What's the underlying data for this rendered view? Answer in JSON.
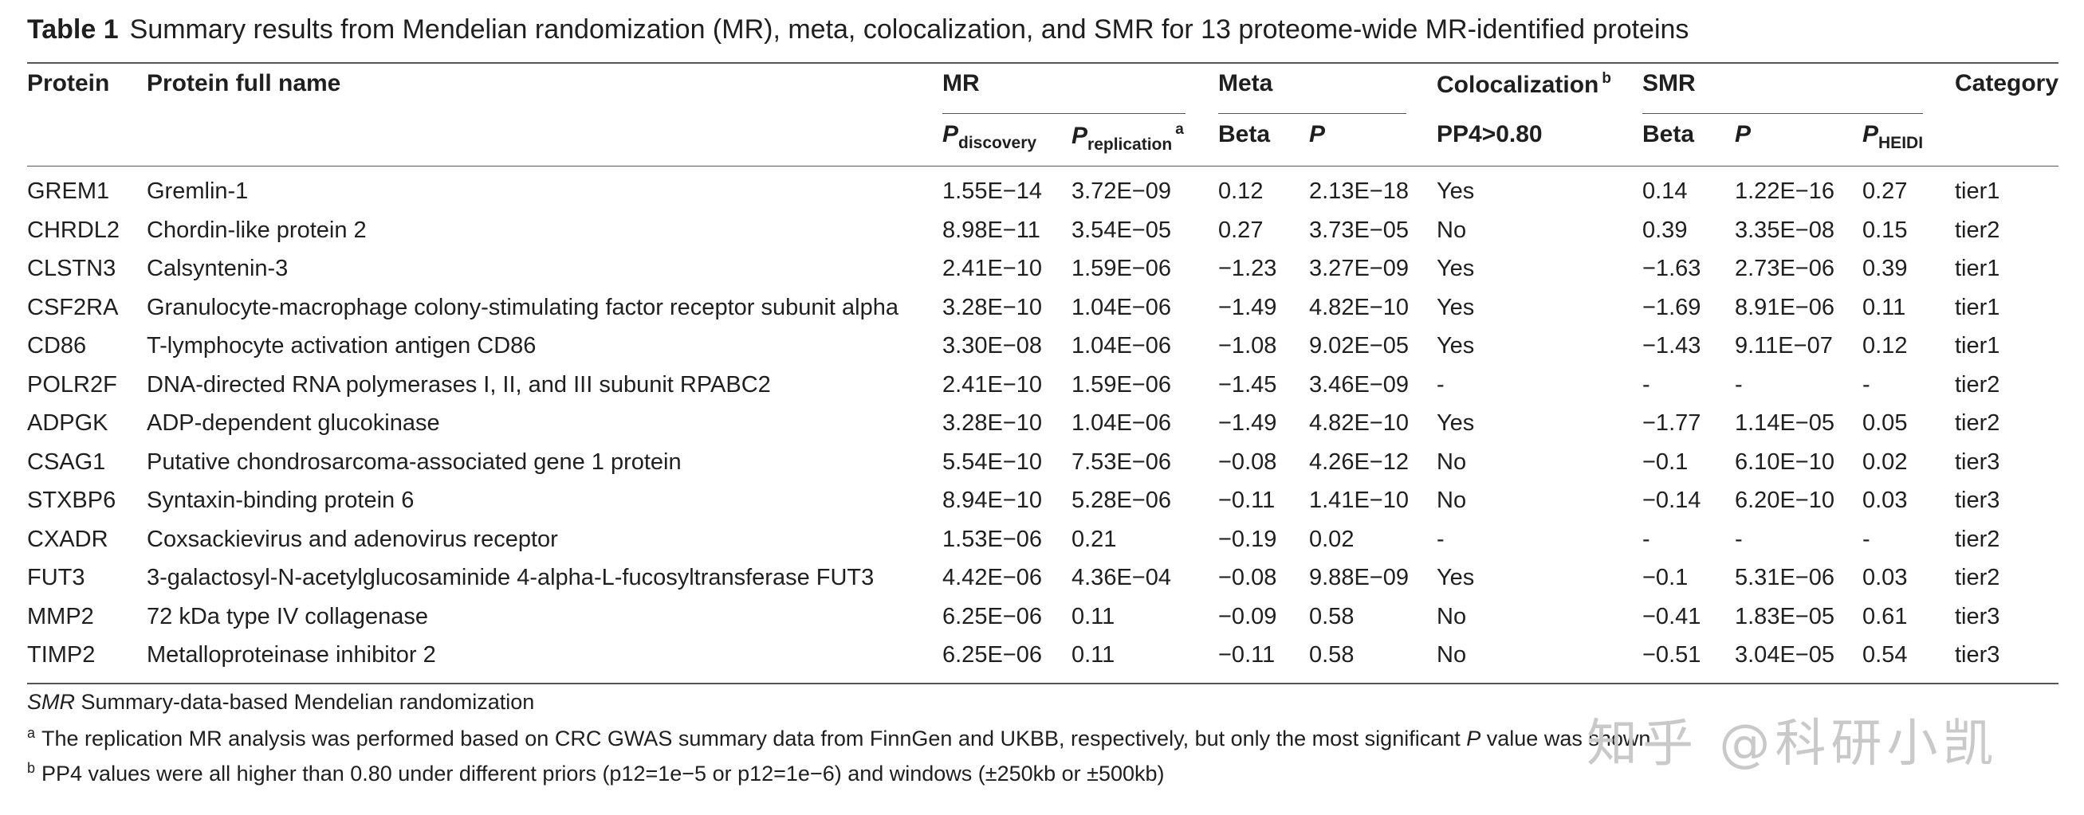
{
  "caption": {
    "label": "Table 1",
    "text": "Summary results from Mendelian randomization (MR), meta, colocalization, and SMR for 13 proteome-wide MR-identified proteins"
  },
  "headers": {
    "protein": "Protein",
    "full_name": "Protein full name",
    "mr": "MR",
    "meta": "Meta",
    "coloc": "Colocalization",
    "coloc_sup": "b",
    "smr": "SMR",
    "category": "Category",
    "p_discovery_p": "P",
    "p_discovery_sub": "discovery",
    "p_replication_p": "P",
    "p_replication_sub": "replication",
    "p_replication_sup": "a",
    "meta_beta": "Beta",
    "meta_p": "P",
    "pp4": "PP4>0.80",
    "smr_beta": "Beta",
    "smr_p": "P",
    "p_heidi_p": "P",
    "p_heidi_sub": "HEIDI"
  },
  "rows": [
    {
      "protein": "GREM1",
      "full_name": "Gremlin-1",
      "p_discovery": "1.55E−14",
      "p_replication": "3.72E−09",
      "meta_beta": "0.12",
      "meta_p": "2.13E−18",
      "pp4": "Yes",
      "smr_beta": "0.14",
      "smr_p": "1.22E−16",
      "p_heidi": "0.27",
      "category": "tier1"
    },
    {
      "protein": "CHRDL2",
      "full_name": "Chordin-like protein 2",
      "p_discovery": "8.98E−11",
      "p_replication": "3.54E−05",
      "meta_beta": "0.27",
      "meta_p": "3.73E−05",
      "pp4": "No",
      "smr_beta": "0.39",
      "smr_p": "3.35E−08",
      "p_heidi": "0.15",
      "category": "tier2"
    },
    {
      "protein": "CLSTN3",
      "full_name": "Calsyntenin-3",
      "p_discovery": "2.41E−10",
      "p_replication": "1.59E−06",
      "meta_beta": "−1.23",
      "meta_p": "3.27E−09",
      "pp4": "Yes",
      "smr_beta": "−1.63",
      "smr_p": "2.73E−06",
      "p_heidi": "0.39",
      "category": "tier1"
    },
    {
      "protein": "CSF2RA",
      "full_name": "Granulocyte-macrophage colony-stimulating factor receptor subunit alpha",
      "p_discovery": "3.28E−10",
      "p_replication": "1.04E−06",
      "meta_beta": "−1.49",
      "meta_p": "4.82E−10",
      "pp4": "Yes",
      "smr_beta": "−1.69",
      "smr_p": "8.91E−06",
      "p_heidi": "0.11",
      "category": "tier1"
    },
    {
      "protein": "CD86",
      "full_name": "T-lymphocyte activation antigen CD86",
      "p_discovery": "3.30E−08",
      "p_replication": "1.04E−06",
      "meta_beta": "−1.08",
      "meta_p": "9.02E−05",
      "pp4": "Yes",
      "smr_beta": "−1.43",
      "smr_p": "9.11E−07",
      "p_heidi": "0.12",
      "category": "tier1"
    },
    {
      "protein": "POLR2F",
      "full_name": "DNA-directed RNA polymerases I, II, and III subunit RPABC2",
      "p_discovery": "2.41E−10",
      "p_replication": "1.59E−06",
      "meta_beta": "−1.45",
      "meta_p": "3.46E−09",
      "pp4": "-",
      "smr_beta": "-",
      "smr_p": "-",
      "p_heidi": "-",
      "category": "tier2"
    },
    {
      "protein": "ADPGK",
      "full_name": "ADP-dependent glucokinase",
      "p_discovery": "3.28E−10",
      "p_replication": "1.04E−06",
      "meta_beta": "−1.49",
      "meta_p": "4.82E−10",
      "pp4": "Yes",
      "smr_beta": "−1.77",
      "smr_p": "1.14E−05",
      "p_heidi": "0.05",
      "category": "tier2"
    },
    {
      "protein": "CSAG1",
      "full_name": "Putative chondrosarcoma-associated gene 1 protein",
      "p_discovery": "5.54E−10",
      "p_replication": "7.53E−06",
      "meta_beta": "−0.08",
      "meta_p": "4.26E−12",
      "pp4": "No",
      "smr_beta": "−0.1",
      "smr_p": "6.10E−10",
      "p_heidi": "0.02",
      "category": "tier3"
    },
    {
      "protein": "STXBP6",
      "full_name": "Syntaxin-binding protein 6",
      "p_discovery": "8.94E−10",
      "p_replication": "5.28E−06",
      "meta_beta": "−0.11",
      "meta_p": "1.41E−10",
      "pp4": "No",
      "smr_beta": "−0.14",
      "smr_p": "6.20E−10",
      "p_heidi": "0.03",
      "category": "tier3"
    },
    {
      "protein": "CXADR",
      "full_name": "Coxsackievirus and adenovirus receptor",
      "p_discovery": "1.53E−06",
      "p_replication": "0.21",
      "meta_beta": "−0.19",
      "meta_p": "0.02",
      "pp4": "-",
      "smr_beta": "-",
      "smr_p": "-",
      "p_heidi": "-",
      "category": "tier2"
    },
    {
      "protein": "FUT3",
      "full_name": "3-galactosyl-N-acetylglucosaminide 4-alpha-L-fucosyltransferase FUT3",
      "p_discovery": "4.42E−06",
      "p_replication": "4.36E−04",
      "meta_beta": "−0.08",
      "meta_p": "9.88E−09",
      "pp4": "Yes",
      "smr_beta": "−0.1",
      "smr_p": "5.31E−06",
      "p_heidi": "0.03",
      "category": "tier2"
    },
    {
      "protein": "MMP2",
      "full_name": "72 kDa type IV collagenase",
      "p_discovery": "6.25E−06",
      "p_replication": "0.11",
      "meta_beta": "−0.09",
      "meta_p": "0.58",
      "pp4": "No",
      "smr_beta": "−0.41",
      "smr_p": "1.83E−05",
      "p_heidi": "0.61",
      "category": "tier3"
    },
    {
      "protein": "TIMP2",
      "full_name": "Metalloproteinase inhibitor 2",
      "p_discovery": "6.25E−06",
      "p_replication": "0.11",
      "meta_beta": "−0.11",
      "meta_p": "0.58",
      "pp4": "No",
      "smr_beta": "−0.51",
      "smr_p": "3.04E−05",
      "p_heidi": "0.54",
      "category": "tier3"
    }
  ],
  "footnotes": {
    "smr_abbr": "SMR",
    "smr_def": "Summary-data-based Mendelian randomization",
    "a_mark": "a",
    "a_text_1": "The replication MR analysis was performed based on CRC GWAS summary data from FinnGen and UKBB, respectively, but only the most significant ",
    "a_p": "P",
    "a_text_2": " value was shown",
    "b_mark": "b",
    "b_text": "PP4 values were all higher than 0.80 under different priors (p12=1e−5 or p12=1e−6) and windows (±250kb or ±500kb)"
  },
  "watermark": "知乎 @科研小凯"
}
